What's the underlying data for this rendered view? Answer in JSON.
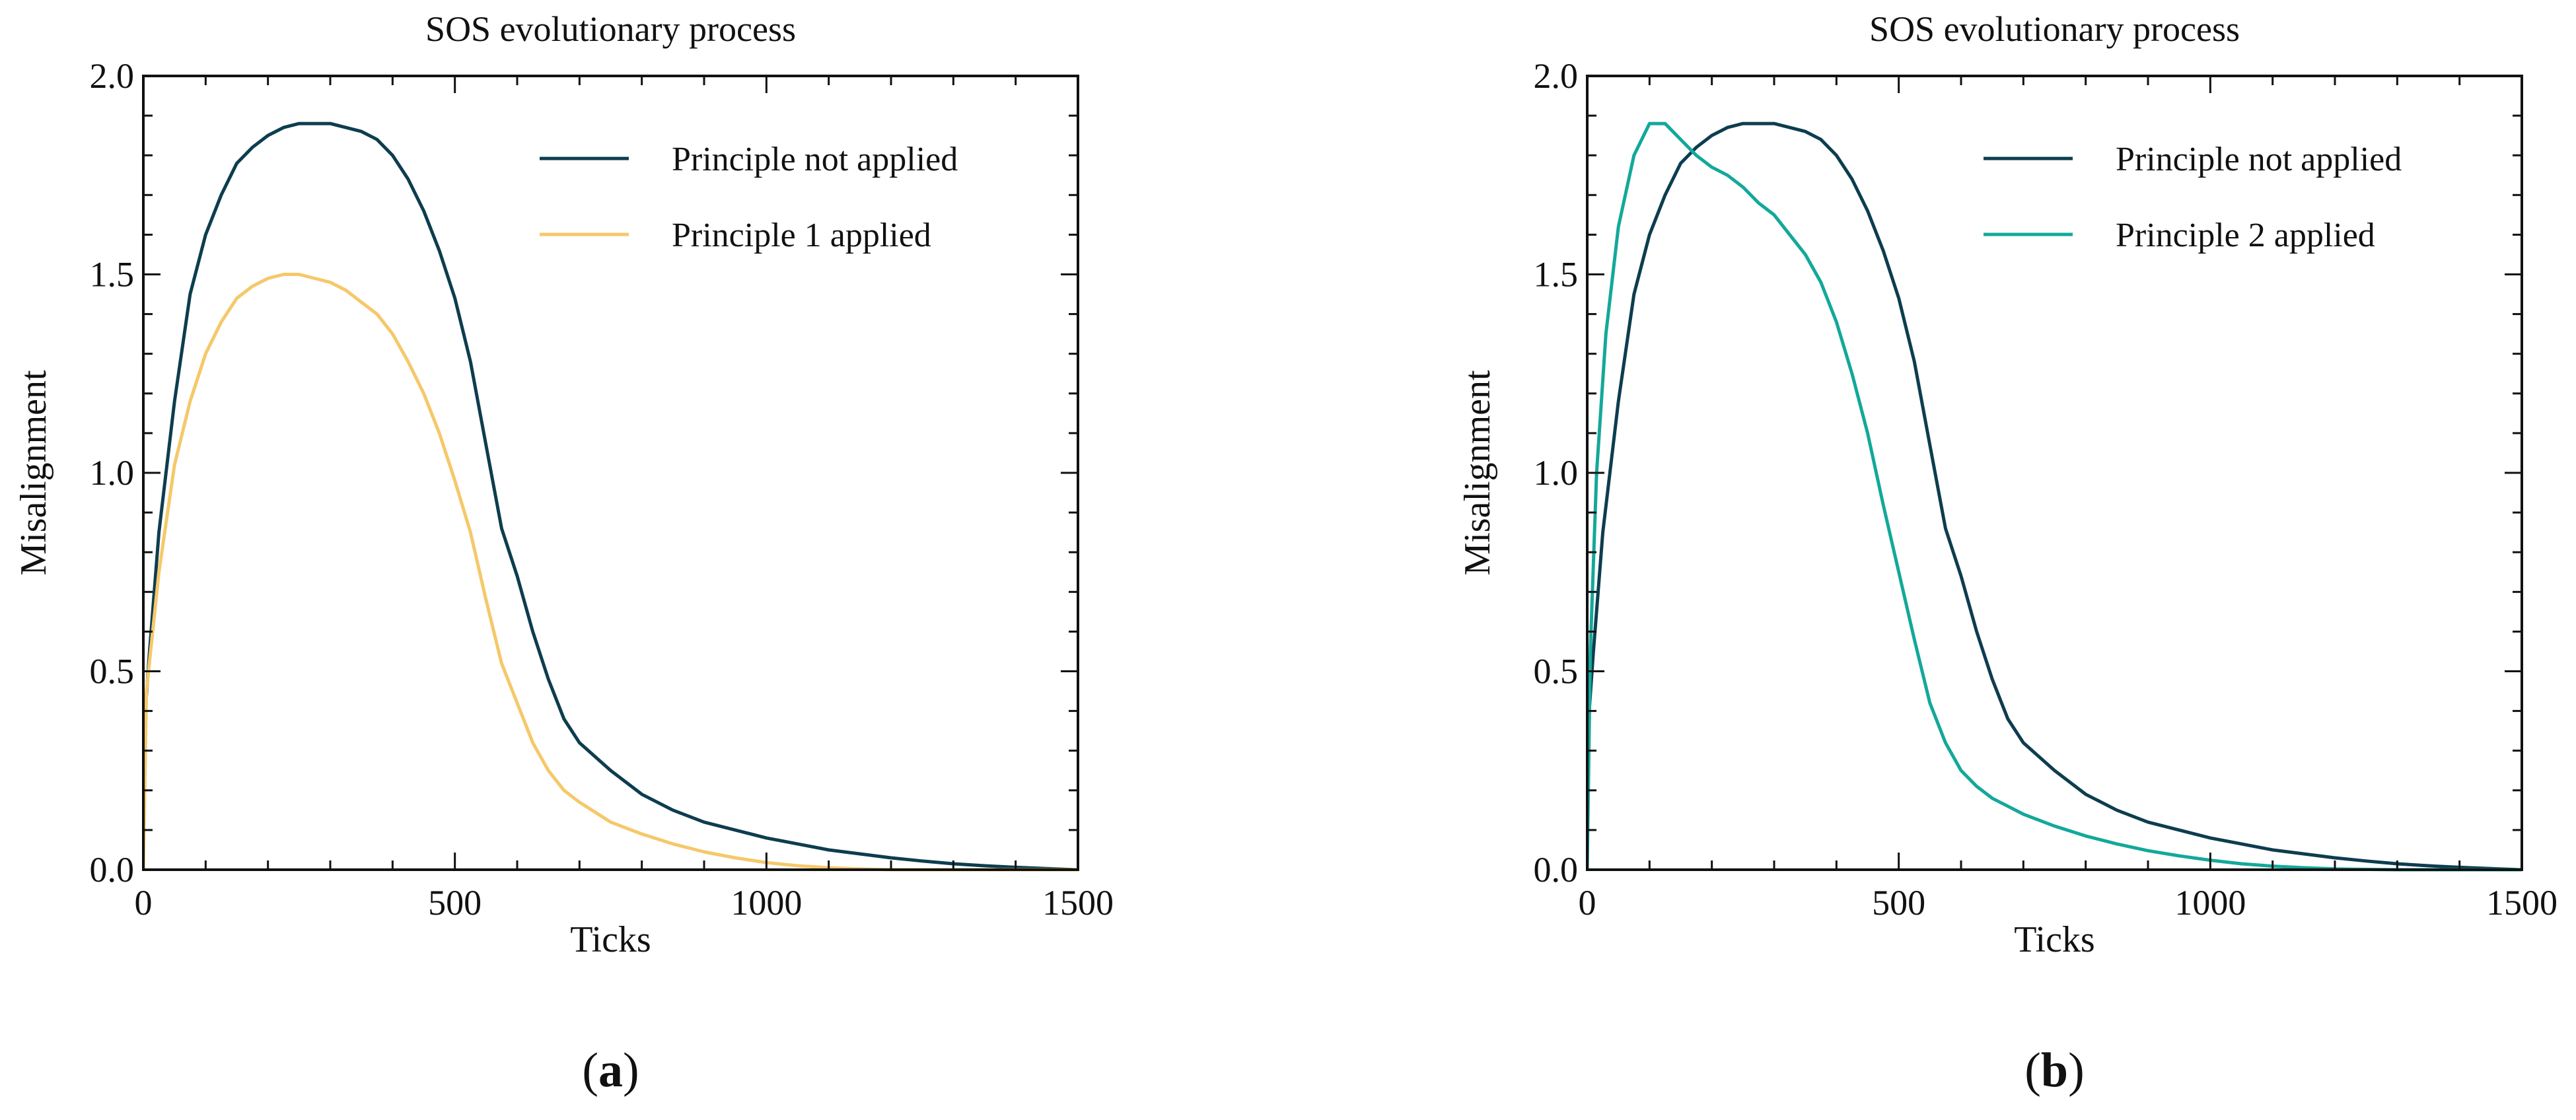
{
  "colors": {
    "axis": "#111111",
    "not_applied": "#0d3d4f",
    "principle_1": "#f5c86a",
    "principle_2": "#13a89a"
  },
  "chart_data": [
    {
      "type": "line",
      "panel_label": "a",
      "title": "SOS evolutionary process",
      "xlabel": "Ticks",
      "ylabel": "Misalignment",
      "xlim": [
        0,
        1500
      ],
      "ylim": [
        0,
        2.0
      ],
      "xticks": [
        "0",
        "500",
        "1000",
        "1500"
      ],
      "yticks": [
        "0.0",
        "0.5",
        "1.0",
        "1.5",
        "2.0"
      ],
      "legend_position": "top-right",
      "series": [
        {
          "name": "Principle not applied",
          "color_key": "not_applied",
          "x": [
            0,
            10,
            25,
            50,
            75,
            100,
            125,
            150,
            175,
            200,
            225,
            250,
            275,
            300,
            325,
            350,
            375,
            400,
            425,
            450,
            475,
            500,
            525,
            550,
            575,
            600,
            625,
            650,
            675,
            700,
            750,
            800,
            850,
            900,
            950,
            1000,
            1050,
            1100,
            1150,
            1200,
            1250,
            1300,
            1350,
            1400,
            1450,
            1500
          ],
          "y": [
            0.33,
            0.55,
            0.85,
            1.18,
            1.45,
            1.6,
            1.7,
            1.78,
            1.82,
            1.85,
            1.87,
            1.88,
            1.88,
            1.88,
            1.87,
            1.86,
            1.84,
            1.8,
            1.74,
            1.66,
            1.56,
            1.44,
            1.28,
            1.07,
            0.86,
            0.74,
            0.6,
            0.48,
            0.38,
            0.32,
            0.25,
            0.19,
            0.15,
            0.12,
            0.1,
            0.08,
            0.065,
            0.05,
            0.04,
            0.03,
            0.022,
            0.015,
            0.01,
            0.006,
            0.003,
            0.0
          ]
        },
        {
          "name": "Principle 1 applied",
          "color_key": "principle_1",
          "x": [
            0,
            5,
            25,
            50,
            75,
            100,
            125,
            150,
            175,
            200,
            225,
            250,
            275,
            300,
            325,
            350,
            375,
            400,
            425,
            450,
            475,
            500,
            525,
            550,
            575,
            600,
            625,
            650,
            675,
            700,
            750,
            800,
            850,
            900,
            950,
            1000,
            1050,
            1100,
            1150,
            1200,
            1300,
            1400,
            1500
          ],
          "y": [
            0.0,
            0.45,
            0.75,
            1.02,
            1.18,
            1.3,
            1.38,
            1.44,
            1.47,
            1.49,
            1.5,
            1.5,
            1.49,
            1.48,
            1.46,
            1.43,
            1.4,
            1.35,
            1.28,
            1.2,
            1.1,
            0.98,
            0.85,
            0.68,
            0.52,
            0.42,
            0.32,
            0.25,
            0.2,
            0.17,
            0.12,
            0.09,
            0.065,
            0.045,
            0.03,
            0.018,
            0.01,
            0.005,
            0.002,
            0.0,
            0.0,
            0.0,
            0.0
          ]
        }
      ]
    },
    {
      "type": "line",
      "panel_label": "b",
      "title": "SOS evolutionary process",
      "xlabel": "Ticks",
      "ylabel": "Misalignment",
      "xlim": [
        0,
        1500
      ],
      "ylim": [
        0,
        2.0
      ],
      "xticks": [
        "0",
        "500",
        "1000",
        "1500"
      ],
      "yticks": [
        "0.0",
        "0.5",
        "1.0",
        "1.5",
        "2.0"
      ],
      "legend_position": "top-right",
      "series": [
        {
          "name": "Principle not applied",
          "color_key": "not_applied",
          "x": [
            0,
            10,
            25,
            50,
            75,
            100,
            125,
            150,
            175,
            200,
            225,
            250,
            275,
            300,
            325,
            350,
            375,
            400,
            425,
            450,
            475,
            500,
            525,
            550,
            575,
            600,
            625,
            650,
            675,
            700,
            750,
            800,
            850,
            900,
            950,
            1000,
            1050,
            1100,
            1150,
            1200,
            1250,
            1300,
            1350,
            1400,
            1450,
            1500
          ],
          "y": [
            0.33,
            0.55,
            0.85,
            1.18,
            1.45,
            1.6,
            1.7,
            1.78,
            1.82,
            1.85,
            1.87,
            1.88,
            1.88,
            1.88,
            1.87,
            1.86,
            1.84,
            1.8,
            1.74,
            1.66,
            1.56,
            1.44,
            1.28,
            1.07,
            0.86,
            0.74,
            0.6,
            0.48,
            0.38,
            0.32,
            0.25,
            0.19,
            0.15,
            0.12,
            0.1,
            0.08,
            0.065,
            0.05,
            0.04,
            0.03,
            0.022,
            0.015,
            0.01,
            0.006,
            0.003,
            0.0
          ]
        },
        {
          "name": "Principle 2 applied",
          "color_key": "principle_2",
          "x": [
            0,
            5,
            15,
            30,
            50,
            75,
            100,
            125,
            150,
            175,
            200,
            225,
            250,
            275,
            300,
            325,
            350,
            375,
            400,
            425,
            450,
            475,
            500,
            525,
            550,
            575,
            600,
            625,
            650,
            675,
            700,
            750,
            800,
            850,
            900,
            950,
            1000,
            1050,
            1100,
            1150,
            1200,
            1300,
            1400,
            1500
          ],
          "y": [
            0.0,
            0.55,
            1.0,
            1.35,
            1.62,
            1.8,
            1.88,
            1.88,
            1.84,
            1.8,
            1.77,
            1.75,
            1.72,
            1.68,
            1.65,
            1.6,
            1.55,
            1.48,
            1.38,
            1.25,
            1.1,
            0.92,
            0.75,
            0.58,
            0.42,
            0.32,
            0.25,
            0.21,
            0.18,
            0.16,
            0.14,
            0.11,
            0.085,
            0.065,
            0.048,
            0.035,
            0.024,
            0.015,
            0.009,
            0.005,
            0.002,
            0.0,
            0.0,
            0.0
          ]
        }
      ]
    }
  ]
}
